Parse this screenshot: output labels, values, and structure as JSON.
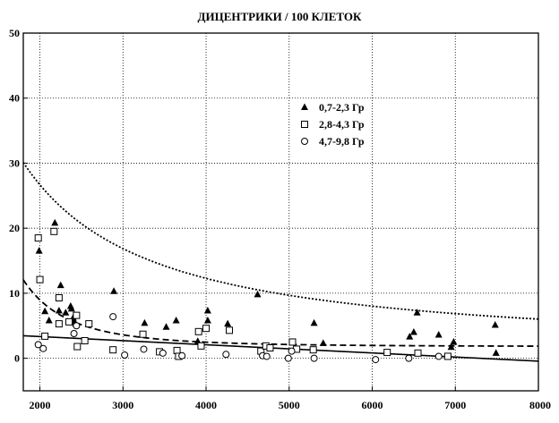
{
  "chart_data": {
    "type": "scatter",
    "title": "ДИЦЕНТРИКИ / 100 КЛЕТОК",
    "xlabel": "",
    "ylabel": "",
    "xlim": [
      1800,
      8000
    ],
    "ylim": [
      -5,
      50
    ],
    "x_ticks": [
      2000,
      3000,
      4000,
      5000,
      6000,
      7000,
      8000
    ],
    "y_ticks": [
      0,
      10,
      20,
      30,
      40,
      50
    ],
    "grid": "dotted vertical and horizontal gridlines",
    "legend_position": "inside, upper right of center",
    "series": [
      {
        "name": "0,7-2,3 Гр",
        "marker": "triangle-filled",
        "points": [
          [
            1990,
            16.5
          ],
          [
            2060,
            7.2
          ],
          [
            2110,
            5.8
          ],
          [
            2180,
            20.8
          ],
          [
            2230,
            7.3
          ],
          [
            2250,
            11.2
          ],
          [
            2310,
            7.0
          ],
          [
            2370,
            8.0
          ],
          [
            2380,
            7.6
          ],
          [
            2400,
            6.2
          ],
          [
            2410,
            5.6
          ],
          [
            2430,
            5.3
          ],
          [
            2890,
            10.3
          ],
          [
            3260,
            5.4
          ],
          [
            3520,
            4.8
          ],
          [
            3640,
            5.8
          ],
          [
            3900,
            2.6
          ],
          [
            4020,
            7.3
          ],
          [
            4020,
            5.8
          ],
          [
            4260,
            5.3
          ],
          [
            4620,
            9.8
          ],
          [
            5300,
            5.4
          ],
          [
            5410,
            2.3
          ],
          [
            6450,
            3.3
          ],
          [
            6500,
            4.0
          ],
          [
            6540,
            7.0
          ],
          [
            6800,
            3.6
          ],
          [
            6950,
            1.7
          ],
          [
            6980,
            2.5
          ],
          [
            7480,
            5.1
          ],
          [
            7490,
            0.8
          ]
        ]
      },
      {
        "name": "2,8-4,3 Гр",
        "marker": "square-open",
        "points": [
          [
            1980,
            18.5
          ],
          [
            2000,
            12.1
          ],
          [
            2060,
            3.4
          ],
          [
            2170,
            19.5
          ],
          [
            2230,
            9.3
          ],
          [
            2230,
            5.3
          ],
          [
            2350,
            5.6
          ],
          [
            2440,
            6.6
          ],
          [
            2450,
            1.8
          ],
          [
            2540,
            2.7
          ],
          [
            2590,
            5.3
          ],
          [
            2880,
            1.3
          ],
          [
            3240,
            3.7
          ],
          [
            3440,
            1.0
          ],
          [
            3650,
            1.2
          ],
          [
            3670,
            0.3
          ],
          [
            3910,
            4.1
          ],
          [
            3940,
            1.9
          ],
          [
            4000,
            4.6
          ],
          [
            4280,
            4.3
          ],
          [
            4660,
            1.1
          ],
          [
            4720,
            1.9
          ],
          [
            4770,
            1.6
          ],
          [
            5040,
            2.5
          ],
          [
            5090,
            1.4
          ],
          [
            5290,
            1.3
          ],
          [
            6180,
            0.9
          ],
          [
            6550,
            0.8
          ],
          [
            6910,
            0.3
          ]
        ]
      },
      {
        "name": "4,7-9,8 Гр",
        "marker": "circle-open",
        "points": [
          [
            1980,
            2.1
          ],
          [
            2040,
            1.5
          ],
          [
            2410,
            3.8
          ],
          [
            2440,
            5.0
          ],
          [
            2880,
            6.4
          ],
          [
            3020,
            0.5
          ],
          [
            3250,
            1.4
          ],
          [
            3480,
            0.8
          ],
          [
            3710,
            0.4
          ],
          [
            4240,
            0.6
          ],
          [
            4680,
            0.4
          ],
          [
            4730,
            0.3
          ],
          [
            4990,
            0.0
          ],
          [
            5030,
            1.1
          ],
          [
            5300,
            0.0
          ],
          [
            6040,
            -0.2
          ],
          [
            6440,
            0.0
          ],
          [
            6800,
            0.3
          ]
        ]
      }
    ],
    "fit_curves": [
      {
        "series": "0,7-2,3 Гр",
        "style": "dotted",
        "model": "power",
        "formula": "y = 1.2 + 2.33e5 * x^-1.2"
      },
      {
        "series": "2,8-4,3 Гр",
        "style": "dashed",
        "model": "power",
        "formula": "y = 1.8 + 1.2e12 * x^-3.4"
      },
      {
        "series": "4,7-9,8 Гр",
        "style": "solid",
        "model": "linear",
        "formula": "y = 4.6 - 0.00063 * x"
      }
    ]
  }
}
